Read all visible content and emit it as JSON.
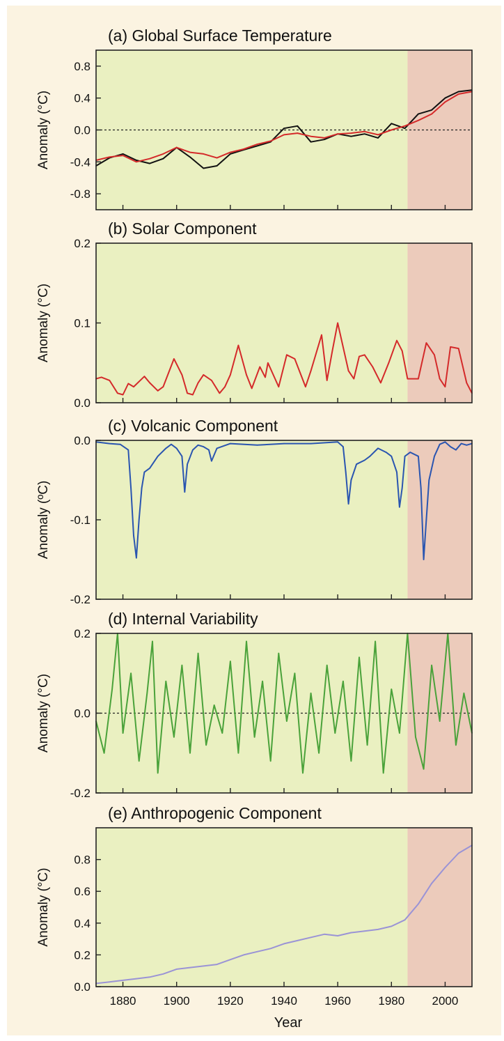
{
  "chart_data": {
    "type": "line",
    "xlabel": "Year",
    "x_ticks": [
      "1880",
      "1900",
      "1920",
      "1940",
      "1960",
      "1980",
      "2000"
    ],
    "xlim": [
      1870,
      2010
    ],
    "shading": [
      {
        "from": 1870,
        "to": 1986,
        "color": "#eaf0c1"
      },
      {
        "from": 1986,
        "to": 2010,
        "color": "#eccbbb"
      }
    ],
    "panels": [
      {
        "title": "(a)  Global Surface Temperature",
        "ylabel": "Anomaly (°C)",
        "ylim": [
          -1.0,
          1.0
        ],
        "y_ticks": [
          "0.8",
          "0.4",
          "0.0",
          "-0.4",
          "-0.8"
        ],
        "y_tick_values": [
          0.8,
          0.4,
          0.0,
          -0.4,
          -0.8
        ],
        "zero_line": true,
        "series": [
          {
            "color": "#111111",
            "x": [
              1870,
              1875,
              1880,
              1885,
              1890,
              1895,
              1900,
              1905,
              1910,
              1915,
              1920,
              1925,
              1930,
              1935,
              1940,
              1945,
              1950,
              1955,
              1960,
              1965,
              1970,
              1975,
              1980,
              1985,
              1990,
              1995,
              2000,
              2005,
              2010
            ],
            "y": [
              -0.45,
              -0.35,
              -0.3,
              -0.38,
              -0.42,
              -0.36,
              -0.22,
              -0.34,
              -0.48,
              -0.45,
              -0.3,
              -0.25,
              -0.2,
              -0.15,
              0.02,
              0.05,
              -0.15,
              -0.12,
              -0.05,
              -0.08,
              -0.05,
              -0.1,
              0.08,
              0.02,
              0.2,
              0.25,
              0.4,
              0.48,
              0.5
            ]
          },
          {
            "color": "#d42a2a",
            "x": [
              1870,
              1875,
              1880,
              1885,
              1890,
              1895,
              1900,
              1905,
              1910,
              1915,
              1920,
              1925,
              1930,
              1935,
              1940,
              1945,
              1950,
              1955,
              1960,
              1965,
              1970,
              1975,
              1980,
              1985,
              1990,
              1995,
              2000,
              2005,
              2010
            ],
            "y": [
              -0.38,
              -0.34,
              -0.32,
              -0.4,
              -0.36,
              -0.3,
              -0.22,
              -0.28,
              -0.3,
              -0.35,
              -0.28,
              -0.24,
              -0.18,
              -0.14,
              -0.06,
              -0.04,
              -0.08,
              -0.1,
              -0.05,
              -0.04,
              -0.02,
              -0.06,
              0.0,
              0.05,
              0.12,
              0.2,
              0.35,
              0.45,
              0.48
            ]
          }
        ]
      },
      {
        "title": "(b)  Solar Component",
        "ylabel": "Anomaly (°C)",
        "ylim": [
          0.0,
          0.2
        ],
        "y_ticks": [
          "0.2",
          "0.1",
          "0.0"
        ],
        "y_tick_values": [
          0.2,
          0.1,
          0.0
        ],
        "zero_line": false,
        "series": [
          {
            "color": "#d42a2a",
            "x": [
              1870,
              1872,
              1875,
              1878,
              1880,
              1882,
              1884,
              1888,
              1890,
              1893,
              1895,
              1899,
              1902,
              1904,
              1906,
              1908,
              1910,
              1913,
              1916,
              1918,
              1920,
              1923,
              1926,
              1928,
              1931,
              1933,
              1934,
              1938,
              1941,
              1944,
              1948,
              1950,
              1954,
              1956,
              1958,
              1960,
              1964,
              1966,
              1968,
              1970,
              1973,
              1976,
              1979,
              1982,
              1984,
              1986,
              1990,
              1993,
              1996,
              1998,
              2000,
              2002,
              2005,
              2008,
              2010
            ],
            "y": [
              0.03,
              0.032,
              0.028,
              0.012,
              0.01,
              0.024,
              0.02,
              0.033,
              0.025,
              0.015,
              0.02,
              0.055,
              0.035,
              0.012,
              0.01,
              0.025,
              0.035,
              0.028,
              0.012,
              0.02,
              0.035,
              0.072,
              0.035,
              0.018,
              0.045,
              0.032,
              0.05,
              0.02,
              0.06,
              0.055,
              0.02,
              0.04,
              0.085,
              0.028,
              0.065,
              0.1,
              0.04,
              0.03,
              0.058,
              0.06,
              0.045,
              0.025,
              0.05,
              0.078,
              0.065,
              0.03,
              0.03,
              0.075,
              0.06,
              0.03,
              0.02,
              0.07,
              0.068,
              0.025,
              0.012
            ]
          }
        ]
      },
      {
        "title": "(c)  Volcanic Component",
        "ylabel": "Anomaly (ºC)",
        "ylim": [
          -0.2,
          0.0
        ],
        "y_ticks": [
          "0.0",
          "-0.1",
          "-0.2"
        ],
        "y_tick_values": [
          0.0,
          -0.1,
          -0.2
        ],
        "zero_line": false,
        "series": [
          {
            "color": "#2a55b0",
            "x": [
              1870,
              1875,
              1879,
              1882,
              1883,
              1884,
              1885,
              1886,
              1887,
              1888,
              1890,
              1893,
              1896,
              1898,
              1900,
              1902,
              1903,
              1904,
              1906,
              1908,
              1910,
              1912,
              1913,
              1915,
              1920,
              1930,
              1940,
              1950,
              1960,
              1962,
              1963,
              1964,
              1965,
              1967,
              1970,
              1972,
              1975,
              1978,
              1980,
              1982,
              1983,
              1984,
              1985,
              1987,
              1990,
              1991,
              1992,
              1993,
              1994,
              1996,
              1998,
              2000,
              2002,
              2004,
              2006,
              2008,
              2010
            ],
            "y": [
              -0.002,
              -0.004,
              -0.005,
              -0.012,
              -0.06,
              -0.12,
              -0.148,
              -0.1,
              -0.06,
              -0.04,
              -0.035,
              -0.02,
              -0.01,
              -0.005,
              -0.01,
              -0.02,
              -0.065,
              -0.03,
              -0.012,
              -0.006,
              -0.008,
              -0.012,
              -0.026,
              -0.01,
              -0.004,
              -0.006,
              -0.004,
              -0.004,
              -0.002,
              -0.008,
              -0.04,
              -0.08,
              -0.05,
              -0.03,
              -0.025,
              -0.02,
              -0.01,
              -0.015,
              -0.02,
              -0.04,
              -0.084,
              -0.06,
              -0.02,
              -0.015,
              -0.02,
              -0.06,
              -0.15,
              -0.1,
              -0.05,
              -0.02,
              -0.005,
              -0.002,
              -0.008,
              -0.012,
              -0.004,
              -0.006,
              -0.004
            ]
          }
        ]
      },
      {
        "title": "(d)  Internal Variability",
        "ylabel": "Anomaly (°C)",
        "ylim": [
          -0.2,
          0.2
        ],
        "y_ticks": [
          "0.2",
          "0.0",
          "-0.2"
        ],
        "y_tick_values": [
          0.2,
          0.0,
          -0.2
        ],
        "zero_line": true,
        "series": [
          {
            "color": "#4aa23a",
            "x": [
              1870,
              1873,
              1876,
              1878,
              1880,
              1883,
              1886,
              1889,
              1891,
              1893,
              1896,
              1899,
              1902,
              1905,
              1908,
              1911,
              1914,
              1917,
              1920,
              1923,
              1926,
              1929,
              1932,
              1935,
              1938,
              1941,
              1944,
              1947,
              1950,
              1953,
              1956,
              1959,
              1962,
              1965,
              1968,
              1971,
              1974,
              1977,
              1980,
              1983,
              1986,
              1989,
              1992,
              1995,
              1998,
              2001,
              2004,
              2007,
              2010
            ],
            "y": [
              -0.02,
              -0.1,
              0.06,
              0.2,
              -0.05,
              0.1,
              -0.12,
              0.05,
              0.18,
              -0.15,
              0.08,
              -0.06,
              0.12,
              -0.1,
              0.15,
              -0.08,
              0.02,
              -0.05,
              0.13,
              -0.1,
              0.18,
              -0.06,
              0.08,
              -0.12,
              0.15,
              -0.02,
              0.1,
              -0.15,
              0.05,
              -0.1,
              0.12,
              -0.05,
              0.08,
              -0.12,
              0.14,
              -0.08,
              0.18,
              -0.15,
              0.06,
              -0.05,
              0.2,
              -0.06,
              -0.14,
              0.12,
              -0.02,
              0.2,
              -0.08,
              0.05,
              -0.05
            ]
          }
        ]
      },
      {
        "title": "(e)  Anthropogenic Component",
        "ylabel": "Anomaly (°C)",
        "ylim": [
          0.0,
          1.0
        ],
        "y_ticks": [
          "0.8",
          "0.6",
          "0.4",
          "0.2",
          "0.0"
        ],
        "y_tick_values": [
          0.8,
          0.6,
          0.4,
          0.2,
          0.0
        ],
        "zero_line": false,
        "series": [
          {
            "color": "#9a93d6",
            "x": [
              1870,
              1875,
              1880,
              1885,
              1890,
              1895,
              1900,
              1905,
              1910,
              1915,
              1920,
              1925,
              1930,
              1935,
              1940,
              1945,
              1950,
              1955,
              1960,
              1965,
              1970,
              1975,
              1980,
              1985,
              1990,
              1995,
              2000,
              2005,
              2010
            ],
            "y": [
              0.02,
              0.03,
              0.04,
              0.05,
              0.06,
              0.08,
              0.11,
              0.12,
              0.13,
              0.14,
              0.17,
              0.2,
              0.22,
              0.24,
              0.27,
              0.29,
              0.31,
              0.33,
              0.32,
              0.34,
              0.35,
              0.36,
              0.38,
              0.42,
              0.52,
              0.65,
              0.75,
              0.84,
              0.89
            ]
          }
        ]
      }
    ]
  }
}
